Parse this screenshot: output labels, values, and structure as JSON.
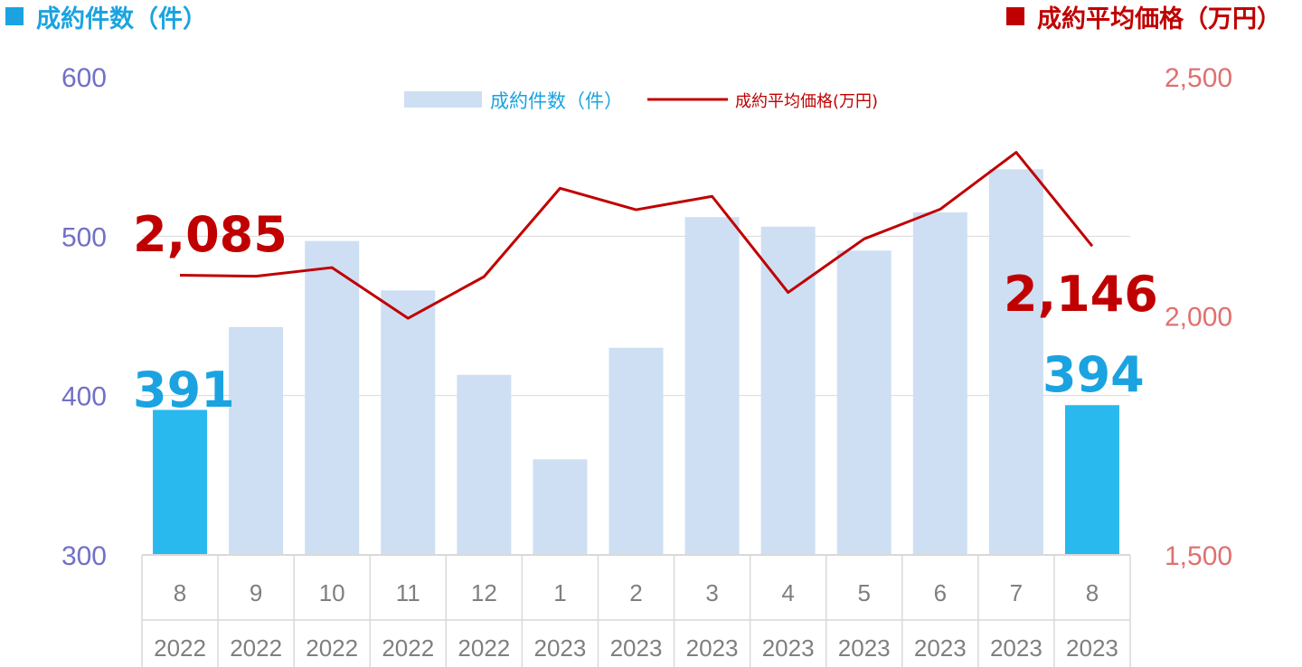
{
  "chart_data": {
    "type": "bar",
    "categories": [
      "8",
      "9",
      "10",
      "11",
      "12",
      "1",
      "2",
      "3",
      "4",
      "5",
      "6",
      "7",
      "8"
    ],
    "years": [
      "2022",
      "2022",
      "2022",
      "2022",
      "2022",
      "2023",
      "2023",
      "2023",
      "2023",
      "2023",
      "2023",
      "2023",
      "2023"
    ],
    "left_axis_title": "成約件数（件）",
    "right_axis_title": "成約平均価格（万円）",
    "left_axis": {
      "ylim": [
        300,
        600
      ],
      "ticks": [
        "300",
        "400",
        "500",
        "600"
      ]
    },
    "right_axis": {
      "ylim": [
        1500,
        2500
      ],
      "ticks": [
        "1,500",
        "2,000",
        "2,500"
      ]
    },
    "legend": {
      "position": "top-center",
      "bar_label": "成約件数（件）",
      "line_label": "成約平均価格(万円)"
    },
    "series": [
      {
        "name": "成約件数（件）",
        "type": "bar",
        "axis": "left",
        "values": [
          391,
          443,
          497,
          466,
          413,
          360,
          430,
          512,
          506,
          491,
          515,
          542,
          394
        ],
        "highlight": [
          0,
          12
        ]
      },
      {
        "name": "成約平均価格(万円)",
        "type": "line",
        "axis": "right",
        "values": [
          2085,
          2083,
          2101,
          1995,
          2082,
          2267,
          2222,
          2250,
          2049,
          2161,
          2223,
          2342,
          2146
        ]
      }
    ],
    "annotations": {
      "first_price": "2,085",
      "last_price": "2,146",
      "first_count": "391",
      "last_count": "394"
    },
    "grid": true,
    "colors": {
      "bar": "#cedff3",
      "bar_highlight": "#29b9ee",
      "line": "#c00000",
      "left_axis": "#7070c8",
      "right_axis": "#e07070",
      "left_title": "#1aa3e0",
      "right_title": "#c00000",
      "grid": "#d9d9d9"
    }
  }
}
